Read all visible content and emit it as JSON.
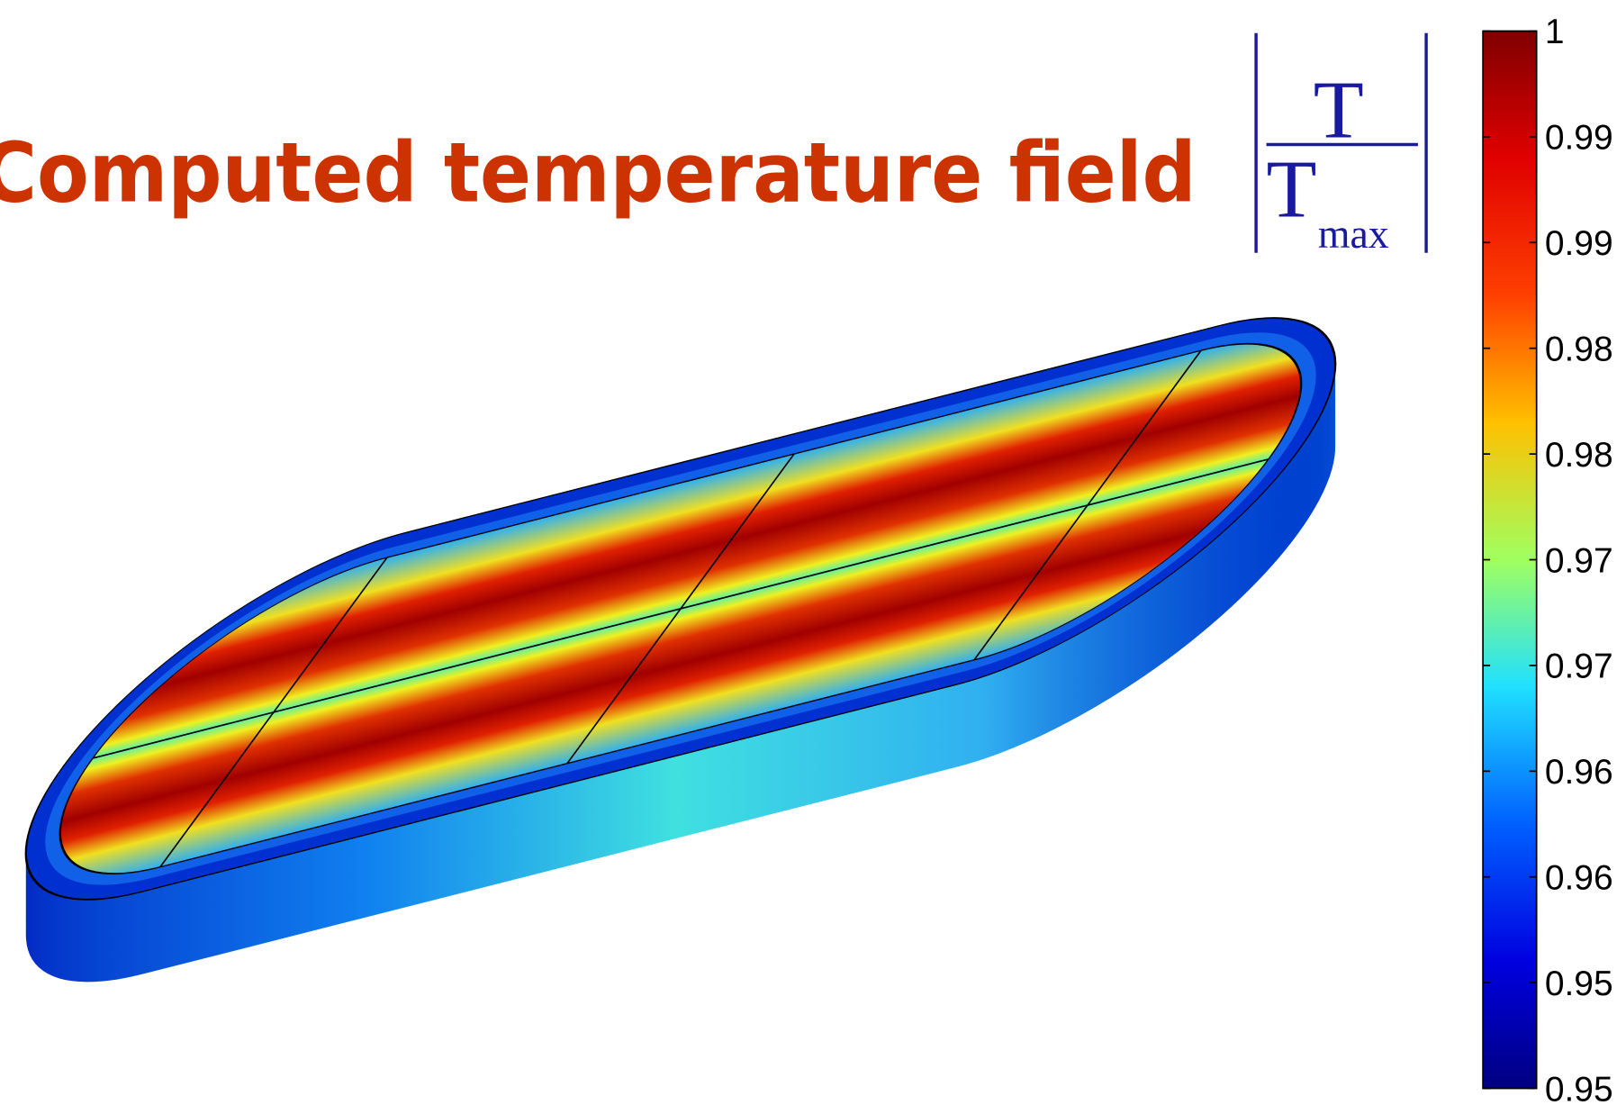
{
  "title": "Computed temperature field",
  "legend": {
    "numerator": "T",
    "denominator": "T",
    "subscript": "max"
  },
  "colorbar": {
    "tick_labels": [
      "1",
      "0.99",
      "0.99",
      "0.98",
      "0.98",
      "0.97",
      "0.97",
      "0.96",
      "0.96",
      "0.95",
      "0.95"
    ]
  }
}
